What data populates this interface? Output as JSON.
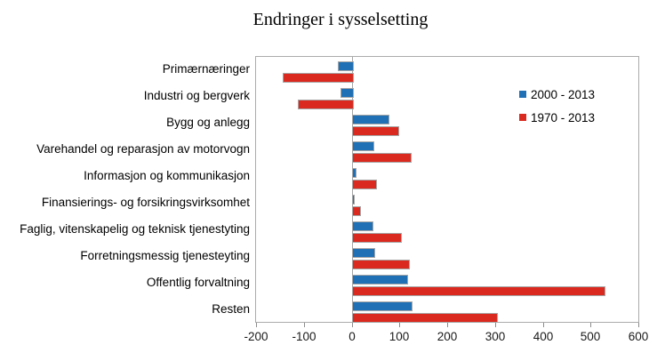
{
  "title": "Endringer i sysselsetting",
  "colors": {
    "series_blue": "#1f70b5",
    "series_red": "#da2a1f",
    "bar_border": "#a6a6a6",
    "axis_line": "#ababab"
  },
  "legend": {
    "entries": [
      {
        "label": "2000 - 2013",
        "color": "#1f70b5"
      },
      {
        "label": "1970 - 2013",
        "color": "#da2a1f"
      }
    ],
    "position": "top-right-inside"
  },
  "chart_data": {
    "type": "bar",
    "orientation": "horizontal",
    "title": "Endringer i sysselsetting",
    "categories": [
      "Primærnæringer",
      "Industri og bergverk",
      "Bygg og anlegg",
      "Varehandel og reparasjon av motorvogn",
      "Informasjon og kommunikasjon",
      "Finansierings- og forsikringsvirksomhet",
      "Faglig, vitenskapelig og teknisk tjenestyting",
      "Forretningsmessig tjenesteyting",
      "Offentlig forvaltning",
      "Resten"
    ],
    "series": [
      {
        "name": "2000 - 2013",
        "color": "#1f70b5",
        "values": [
          -29,
          -24,
          75,
          42,
          5,
          1,
          40,
          45,
          113,
          122
        ]
      },
      {
        "name": "1970 - 2013",
        "color": "#da2a1f",
        "values": [
          -145,
          -113,
          95,
          120,
          48,
          15,
          100,
          118,
          527,
          302
        ]
      }
    ],
    "xlabel": "",
    "ylabel": "",
    "xlim": [
      -200,
      600
    ],
    "xticks": [
      -200,
      -100,
      0,
      100,
      200,
      300,
      400,
      500,
      600
    ],
    "grid": false,
    "legend_position": "top-right-inside"
  }
}
